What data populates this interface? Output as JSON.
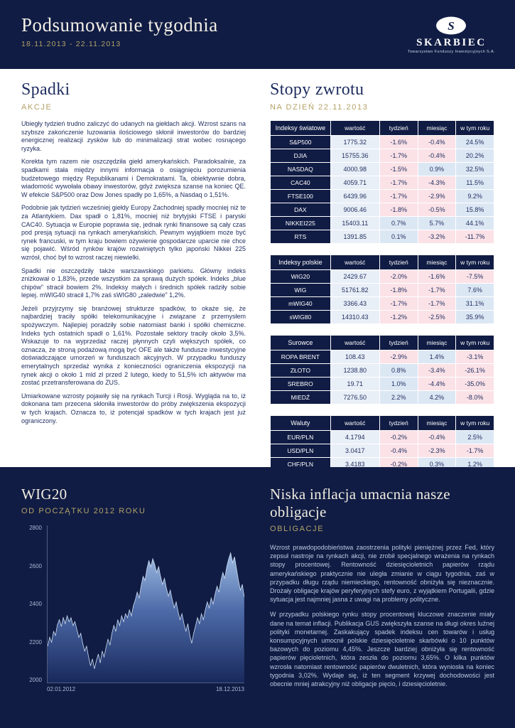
{
  "header": {
    "title": "Podsumowanie tygodnia",
    "date_range": "18.11.2013 - 22.11.2013",
    "logo": {
      "monogram": "S",
      "name": "SKARBIEC",
      "subtitle": "Towarzystwo Funduszy Inwestycyjnych S.A."
    }
  },
  "colors": {
    "navy": "#101c44",
    "gold": "#b3a266",
    "positive_bg": "#dce7f4",
    "negative_bg": "#fbe2e7",
    "value_bg": "#e9eff7"
  },
  "stocks": {
    "heading": "Spadki",
    "subheading": "AKCJE",
    "paragraphs": [
      "Ubiegły tydzień trudno zaliczyć do udanych na giełdach akcji. Wzrost szans na szybsze zakończenie luzowania ilościowego skłonił inwestorów do bardziej energicznej realizacji zysków lub do minimalizacji strat wobec rosnącego ryzyka.",
      "Korekta tym razem nie oszczędziła giełd amerykańskich. Paradoksalnie, za spadkami stała między innymi informacja o osiągnięciu porozumienia budżetowego między Republikanami i Demokratami. Ta, obiektywnie dobra, wiadomość wywołała obawy inwestorów, gdyż zwiększa szanse na koniec QE. W efekcie S&P500 oraz Dow Jones spadły po 1,65%, a Nasdaq o 1,51%.",
      "Podobnie jak tydzień wcześniej giełdy Europy Zachodniej spadły mocniej niż te za Atlantykiem.  Dax spadł o 1,81%, mocniej niż brytyjski FTSE i paryski CAC40. Sytuacja w Europie poprawia się, jednak rynki finansowe są cały czas pod presją sytuacji na rynkach amerykańskich. Pewnym wyjątkiem może być rynek francuski, w tym kraju bowiem ożywienie gospodarcze uparcie nie chce się pojawić. Wśród rynków krajów rozwiniętych tylko japoński Nikkei 225 wzrósł, choć był to wzrost raczej niewielki.",
      "Spadki nie oszczędziły także warszawskiego parkietu.  Główny indeks zniżkował o 1,83%, przede wszystkim za sprawą dużych spółek. Indeks „blue chipów” stracił bowiem 2%. Indeksy małych i średnich spółek radziły sobie lepiej. mWIG40 stracił 1,7% zaś sWIG80 „zaledwie” 1,2%.",
      "Jeżeli przyjrzymy się branżowej strukturze spadków, to okaże się, że najbardziej traciły spółki telekomunikacyjne i związane z przemysłem spożywczym.  Najlepiej poradziły sobie natomiast banki i spółki chemiczne. Indeks tych ostatnich spadł o 1,61%. Pozostałe sektory traciły około 3,5%. Wskazuje to na wyprzedaż raczej płynnych czyli większych spółek, co oznacza, że stroną podażową mogą być OFE ale także fundusze inwestycyjne doświadczające umorzeń w funduszach akcyjnych. W przypadku funduszy emerytalnych sprzedaż wynika z konieczności ograniczenia ekspozycji na rynek akcji o około 1 mld zł przed 2 lutego, kiedy to 51,5% ich aktywów ma zostać przetransferowana do ZUS.",
      "Umiarkowane wzrosty pojawiły się na rynkach Turcji i Rosji. Wygląda na to, iż dokonana tam przecena skłoniła inwestorów do próby zwiększenia ekspozycji w tych krajach. Oznacza to, iż potencjał spadków w tych krajach jest już ograniczony."
    ]
  },
  "returns": {
    "heading": "Stopy zwrotu",
    "subheading": "NA DZIEŃ 22.11.2013",
    "columns": [
      "wartość",
      "tydzień",
      "miesiąc",
      "w tym roku"
    ],
    "tables": [
      {
        "title": "Indeksy światowe",
        "rows": [
          {
            "label": "S&P500",
            "values": [
              "1775.32",
              "-1.6%",
              "-0.4%",
              "24.5%"
            ]
          },
          {
            "label": "DJIA",
            "values": [
              "15755.36",
              "-1.7%",
              "-0.4%",
              "20.2%"
            ]
          },
          {
            "label": "NASDAQ",
            "values": [
              "4000.98",
              "-1.5%",
              "0.9%",
              "32.5%"
            ]
          },
          {
            "label": "CAC40",
            "values": [
              "4059.71",
              "-1.7%",
              "-4.3%",
              "11.5%"
            ]
          },
          {
            "label": "FTSE100",
            "values": [
              "6439.96",
              "-1.7%",
              "-2.9%",
              "9.2%"
            ]
          },
          {
            "label": "DAX",
            "values": [
              "9006.46",
              "-1.8%",
              "-0.5%",
              "15.8%"
            ]
          },
          {
            "label": "NIKKEI225",
            "values": [
              "15403.11",
              "0.7%",
              "5.7%",
              "44.1%"
            ]
          },
          {
            "label": "RTS",
            "values": [
              "1391.85",
              "0.1%",
              "-3.2%",
              "-11.7%"
            ]
          }
        ]
      },
      {
        "title": "Indeksy polskie",
        "rows": [
          {
            "label": "WIG20",
            "values": [
              "2429.67",
              "-2.0%",
              "-1.6%",
              "-7.5%"
            ]
          },
          {
            "label": "WIG",
            "values": [
              "51761.82",
              "-1.8%",
              "-1.7%",
              "7.6%"
            ]
          },
          {
            "label": "mWIG40",
            "values": [
              "3366.43",
              "-1.7%",
              "-1.7%",
              "31.1%"
            ]
          },
          {
            "label": "sWIG80",
            "values": [
              "14310.43",
              "-1.2%",
              "-2.5%",
              "35.9%"
            ]
          }
        ]
      },
      {
        "title": "Surowce",
        "rows": [
          {
            "label": "ROPA BRENT",
            "values": [
              "108.43",
              "-2.9%",
              "1.4%",
              "-3.1%"
            ]
          },
          {
            "label": "ZŁOTO",
            "values": [
              "1238.80",
              "0.8%",
              "-3.4%",
              "-26.1%"
            ]
          },
          {
            "label": "SREBRO",
            "values": [
              "19.71",
              "1.0%",
              "-4.4%",
              "-35.0%"
            ]
          },
          {
            "label": "MIEDŹ",
            "values": [
              "7276.50",
              "2.2%",
              "4.2%",
              "-8.0%"
            ]
          }
        ]
      },
      {
        "title": "Waluty",
        "rows": [
          {
            "label": "EUR/PLN",
            "values": [
              "4.1794",
              "-0.2%",
              "-0.4%",
              "2.5%"
            ]
          },
          {
            "label": "USD/PLN",
            "values": [
              "3.0417",
              "-0.4%",
              "-2.3%",
              "-1.7%"
            ]
          },
          {
            "label": "CHF/PLN",
            "values": [
              "3.4183",
              "-0.2%",
              "0.3%",
              "1.2%"
            ]
          },
          {
            "label": "EUR/USD",
            "values": [
              "1.3742",
              "0.3%",
              "1.9%",
              "4.2%"
            ]
          }
        ]
      }
    ]
  },
  "wig20": {
    "heading": "WIG20",
    "subheading": "OD POCZĄTKU 2012 ROKU"
  },
  "chart_data": {
    "type": "area",
    "title": "WIG20",
    "subtitle": "OD POCZĄTKU 2012 ROKU",
    "ylim": [
      2000,
      2800
    ],
    "yticks": [
      2800,
      2600,
      2400,
      2200,
      2000
    ],
    "x_start": "02.01.2012",
    "x_end": "18.12.2013",
    "values": [
      2185,
      2230,
      2205,
      2260,
      2240,
      2295,
      2320,
      2285,
      2330,
      2300,
      2340,
      2310,
      2330,
      2290,
      2310,
      2270,
      2230,
      2250,
      2200,
      2160,
      2185,
      2130,
      2085,
      2120,
      2070,
      2110,
      2145,
      2100,
      2160,
      2130,
      2180,
      2220,
      2190,
      2250,
      2290,
      2260,
      2320,
      2290,
      2340,
      2310,
      2350,
      2330,
      2370,
      2340,
      2390,
      2420,
      2460,
      2430,
      2490,
      2540,
      2520,
      2580,
      2620,
      2590,
      2630,
      2600,
      2560,
      2590,
      2540,
      2500,
      2530,
      2480,
      2440,
      2470,
      2420,
      2380,
      2410,
      2360,
      2320,
      2350,
      2300,
      2260,
      2300,
      2240,
      2200,
      2250,
      2290,
      2330,
      2300,
      2350,
      2320,
      2370,
      2410,
      2380,
      2430,
      2400,
      2450,
      2490,
      2460,
      2520,
      2560,
      2530,
      2590,
      2630,
      2660,
      2610,
      2640,
      2580,
      2520,
      2470,
      2500,
      2436
    ]
  },
  "bonds": {
    "heading": "Niska inflacja umacnia nasze obligacje",
    "subheading": "OBLIGACJE",
    "paragraphs": [
      "Wzrost prawdopodobieństwa zaostrzenia polityki pieniężnej przez Fed, który zepsuł nastroje na rynkach akcji, nie zrobił specjalnego wrażenia na rynkach stopy procentowej. Rentowność dziesięcioletnich papierów rządu amerykańskiego praktycznie nie uległa zmianie w ciągu tygodnia, zaś w przypadku długu rządu niemieckiego, rentowność obniżyła się nieznacznie. Drożały obligacje krajów peryferyjnych stefy euro, z wyjątkiem Portugalii, gdzie sytuacja jest najmniej jasna z uwagi na problemy polityczne.",
      "W przypadku polskiego rynku stopy procentowej kluczowe znaczenie miały dane na temat inflacji. Publikacja GUS zwiększyła szanse na długi okres luźnej polityki monetarnej. Zaskakujący spadek indeksu cen towarów i usług konsumpcyjnych umocnił polskie dziesięcioletnie skarbówki o 10 punktów bazowych do poziomu 4,45%. Jeszcze bardziej obniżyła się rentowność papierów pięcioletnich, która zeszła do poziomu 3,65%. O kilka punktów wzrosła natomiast rentowność papierów dwuletnich, która wyniosła na koniec tygodnia 3,02%. Wydaje się, iż ten segment krzywej dochodowości jest obecnie mniej atrakcyjny niż obligacje pięcio, i dziesięcioletnie."
    ]
  }
}
